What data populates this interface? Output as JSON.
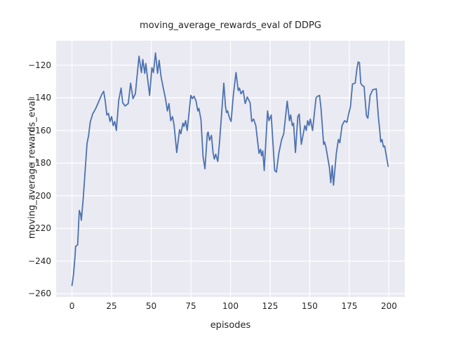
{
  "figure": {
    "background": "#ffffff",
    "plot_background": "#eaeaf2",
    "grid_color": "#ffffff",
    "text_color": "#262626"
  },
  "chart_data": {
    "type": "line",
    "title": "moving_average_rewards_eval of DDPG",
    "xlabel": "episodes",
    "ylabel": "moving_average_rewards_eval",
    "xlim": [
      -10,
      210
    ],
    "ylim": [
      -262,
      -105
    ],
    "xticks": [
      0,
      25,
      50,
      75,
      100,
      125,
      150,
      175,
      200
    ],
    "yticks": [
      -120,
      -140,
      -160,
      -180,
      -200,
      -220,
      -240,
      -260
    ],
    "grid": true,
    "legend_position": "none",
    "line_color": "#4c72b0",
    "series": [
      {
        "name": "moving_average_rewards_eval",
        "points": [
          [
            0,
            -255
          ],
          [
            1,
            -248
          ],
          [
            2,
            -236
          ],
          [
            2.3,
            -231
          ],
          [
            3.6,
            -230
          ],
          [
            4.6,
            -209
          ],
          [
            5.4,
            -211
          ],
          [
            5.9,
            -215
          ],
          [
            7,
            -203
          ],
          [
            8.5,
            -182
          ],
          [
            9.5,
            -168
          ],
          [
            10.5,
            -163
          ],
          [
            11.5,
            -155
          ],
          [
            13,
            -150
          ],
          [
            15,
            -146.5
          ],
          [
            17,
            -142
          ],
          [
            19,
            -137.5
          ],
          [
            20,
            -136
          ],
          [
            21,
            -142
          ],
          [
            22,
            -150.5
          ],
          [
            23,
            -149.5
          ],
          [
            24,
            -154.5
          ],
          [
            25,
            -151.5
          ],
          [
            26,
            -157
          ],
          [
            27,
            -154.5
          ],
          [
            28,
            -160
          ],
          [
            29.5,
            -141.5
          ],
          [
            31,
            -134
          ],
          [
            32,
            -143
          ],
          [
            33.5,
            -145
          ],
          [
            35.5,
            -143.5
          ],
          [
            37,
            -131
          ],
          [
            38.5,
            -140.5
          ],
          [
            40,
            -137.5
          ],
          [
            42.3,
            -114.5
          ],
          [
            43.8,
            -124.5
          ],
          [
            44.7,
            -116.5
          ],
          [
            45.9,
            -125
          ],
          [
            46.6,
            -119
          ],
          [
            47.8,
            -129
          ],
          [
            49,
            -138.5
          ],
          [
            50.4,
            -121.5
          ],
          [
            51.4,
            -124.5
          ],
          [
            52.7,
            -112.5
          ],
          [
            54,
            -125
          ],
          [
            55,
            -117
          ],
          [
            56.2,
            -127
          ],
          [
            57.5,
            -133.5
          ],
          [
            59,
            -140.5
          ],
          [
            60.2,
            -148
          ],
          [
            61.2,
            -143.5
          ],
          [
            62.3,
            -154
          ],
          [
            63.4,
            -151.5
          ],
          [
            64.4,
            -156.5
          ],
          [
            66.1,
            -173.5
          ],
          [
            67.9,
            -159.5
          ],
          [
            68.7,
            -162
          ],
          [
            70,
            -155.5
          ],
          [
            70.7,
            -157.5
          ],
          [
            71.7,
            -154
          ],
          [
            72.7,
            -160
          ],
          [
            75,
            -138.5
          ],
          [
            76,
            -140.5
          ],
          [
            77,
            -139
          ],
          [
            78.3,
            -142
          ],
          [
            79.4,
            -148
          ],
          [
            80.1,
            -146.5
          ],
          [
            81.4,
            -153.5
          ],
          [
            82.7,
            -176
          ],
          [
            83.9,
            -183.5
          ],
          [
            85.4,
            -162
          ],
          [
            85.9,
            -161
          ],
          [
            86.8,
            -166
          ],
          [
            88,
            -163
          ],
          [
            89,
            -173.5
          ],
          [
            89.8,
            -177.5
          ],
          [
            90.7,
            -174.5
          ],
          [
            92,
            -179
          ],
          [
            93.2,
            -166
          ],
          [
            95.8,
            -131
          ],
          [
            96.9,
            -145.5
          ],
          [
            97.5,
            -149
          ],
          [
            98.2,
            -148
          ],
          [
            99.3,
            -152
          ],
          [
            100.4,
            -154.5
          ],
          [
            101.8,
            -138.5
          ],
          [
            103.5,
            -124.5
          ],
          [
            104.9,
            -135.5
          ],
          [
            105.7,
            -134
          ],
          [
            106.6,
            -137.5
          ],
          [
            108,
            -135.5
          ],
          [
            109.3,
            -143.5
          ],
          [
            110.6,
            -139.5
          ],
          [
            112.4,
            -143
          ],
          [
            113.4,
            -154.5
          ],
          [
            114.6,
            -153
          ],
          [
            116,
            -157
          ],
          [
            118,
            -174
          ],
          [
            119,
            -171.5
          ],
          [
            119.6,
            -175.5
          ],
          [
            120.4,
            -172.5
          ],
          [
            121.3,
            -184.5
          ],
          [
            123.4,
            -148
          ],
          [
            124.3,
            -154
          ],
          [
            125.7,
            -150.5
          ],
          [
            127.9,
            -184.5
          ],
          [
            129,
            -185.5
          ],
          [
            130.5,
            -174
          ],
          [
            132.3,
            -165.5
          ],
          [
            133.6,
            -162
          ],
          [
            135.8,
            -142
          ],
          [
            137.2,
            -154
          ],
          [
            138,
            -150.5
          ],
          [
            139,
            -157
          ],
          [
            139.8,
            -155.5
          ],
          [
            141,
            -173.5
          ],
          [
            142.5,
            -151.5
          ],
          [
            143.4,
            -150
          ],
          [
            144.7,
            -168.5
          ],
          [
            146.9,
            -157
          ],
          [
            147.8,
            -160
          ],
          [
            148.7,
            -154
          ],
          [
            149.6,
            -157
          ],
          [
            150.4,
            -153
          ],
          [
            151.8,
            -160
          ],
          [
            154,
            -140
          ],
          [
            155,
            -139
          ],
          [
            156.2,
            -138.5
          ],
          [
            157.1,
            -146
          ],
          [
            158.8,
            -168.5
          ],
          [
            159.3,
            -167
          ],
          [
            160.2,
            -170
          ],
          [
            162.4,
            -182.5
          ],
          [
            163.3,
            -192
          ],
          [
            164.2,
            -181.5
          ],
          [
            165,
            -193.5
          ],
          [
            166.8,
            -174
          ],
          [
            168.1,
            -165.5
          ],
          [
            169,
            -167.5
          ],
          [
            170.4,
            -157
          ],
          [
            172,
            -154
          ],
          [
            173.5,
            -155
          ],
          [
            174.3,
            -151
          ],
          [
            175.7,
            -145.5
          ],
          [
            177,
            -131.5
          ],
          [
            178.7,
            -131
          ],
          [
            179.8,
            -122
          ],
          [
            180.6,
            -118
          ],
          [
            181.4,
            -118.5
          ],
          [
            182.2,
            -131
          ],
          [
            183.2,
            -132.5
          ],
          [
            184.3,
            -133
          ],
          [
            185.8,
            -151
          ],
          [
            186.7,
            -152.5
          ],
          [
            188.1,
            -138.5
          ],
          [
            189.8,
            -135
          ],
          [
            192,
            -134.5
          ],
          [
            193.4,
            -152.5
          ],
          [
            194.2,
            -160
          ],
          [
            194.8,
            -167
          ],
          [
            195.6,
            -165.5
          ],
          [
            196.5,
            -170
          ],
          [
            197.3,
            -169.5
          ],
          [
            198.6,
            -177
          ],
          [
            199.5,
            -182
          ]
        ]
      }
    ]
  }
}
